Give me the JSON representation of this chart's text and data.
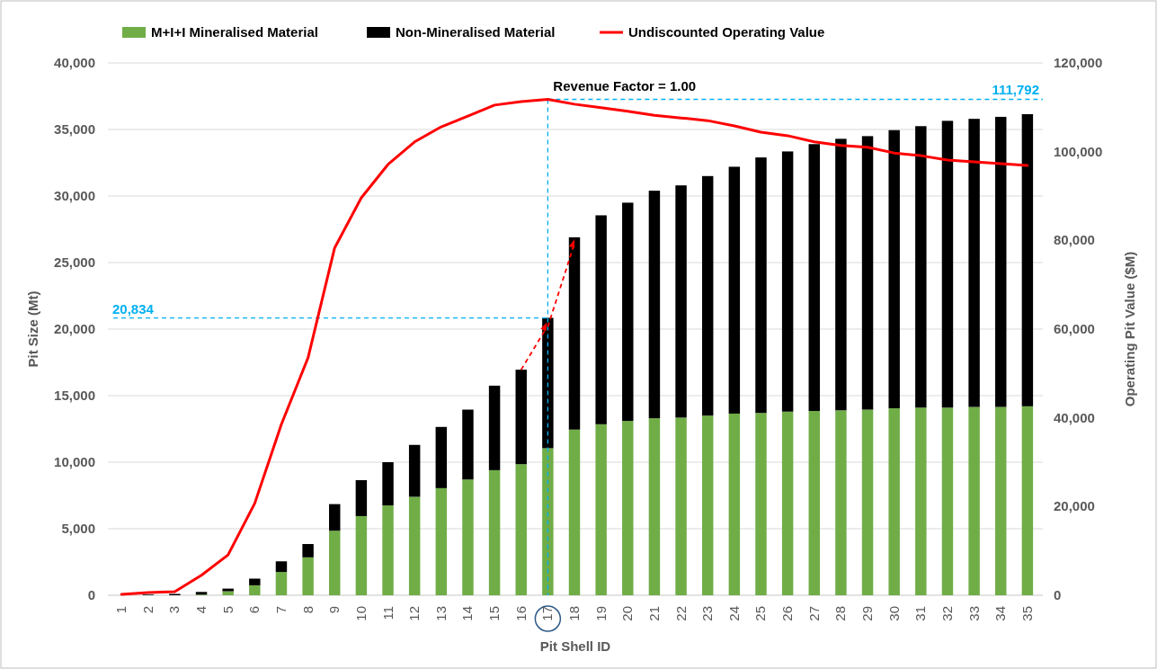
{
  "chart_data": {
    "type": "bar",
    "stacked": true,
    "categories": [
      "1",
      "2",
      "3",
      "4",
      "5",
      "6",
      "7",
      "8",
      "9",
      "10",
      "11",
      "12",
      "13",
      "14",
      "15",
      "16",
      "17",
      "18",
      "19",
      "20",
      "21",
      "22",
      "23",
      "24",
      "25",
      "26",
      "27",
      "28",
      "29",
      "30",
      "31",
      "32",
      "33",
      "34",
      "35"
    ],
    "series": [
      {
        "name": "M+I+I Mineralised Material",
        "color": "#70ad47",
        "values": [
          0,
          0,
          0,
          50,
          300,
          750,
          1750,
          2850,
          4850,
          5950,
          6750,
          7400,
          8050,
          8700,
          9400,
          9850,
          11050,
          12450,
          12850,
          13100,
          13300,
          13350,
          13500,
          13650,
          13700,
          13800,
          13850,
          13900,
          13950,
          14050,
          14100,
          14100,
          14150,
          14150,
          14200
        ]
      },
      {
        "name": "Non-Mineralised Material",
        "color": "#000000",
        "values": [
          null,
          50,
          100,
          200,
          200,
          500,
          800,
          1000,
          2000,
          2700,
          3250,
          3900,
          4600,
          5250,
          6350,
          7100,
          9800,
          14450,
          15700,
          16400,
          17100,
          17450,
          18000,
          18550,
          19200,
          19550,
          20050,
          20400,
          20550,
          20900,
          21150,
          21550,
          21650,
          21800,
          21950
        ]
      },
      {
        "name": "Undiscounted Operating Value",
        "type": "line",
        "axis": "y2",
        "color": "#ff0000",
        "values": [
          200,
          600,
          800,
          4500,
          9100,
          20700,
          38500,
          53500,
          78300,
          89600,
          97100,
          102200,
          105600,
          108000,
          110500,
          111300,
          111800,
          110700,
          109900,
          109100,
          108200,
          107600,
          107000,
          105800,
          104400,
          103600,
          102200,
          101400,
          101000,
          99700,
          99100,
          98100,
          97700,
          97300,
          96900
        ]
      }
    ],
    "xlabel": "Pit Shell ID",
    "ylabel": "Pit Size (Mt)",
    "y2label": "Operating Pit Value ($M)",
    "ylim": [
      0,
      40000
    ],
    "yticks": [
      {
        "value": 0,
        "label": "0"
      },
      {
        "value": 5000,
        "label": "5,000"
      },
      {
        "value": 10000,
        "label": "10,000"
      },
      {
        "value": 15000,
        "label": "15,000"
      },
      {
        "value": 20000,
        "label": "20,000"
      },
      {
        "value": 25000,
        "label": "25,000"
      },
      {
        "value": 30000,
        "label": "30,000"
      },
      {
        "value": 35000,
        "label": "35,000"
      },
      {
        "value": 40000,
        "label": "40,000"
      }
    ],
    "y2lim": [
      0,
      120000
    ],
    "y2ticks": [
      {
        "value": 0,
        "label": "0"
      },
      {
        "value": 20000,
        "label": "20,000"
      },
      {
        "value": 40000,
        "label": "40,000"
      },
      {
        "value": 60000,
        "label": "60,000"
      },
      {
        "value": 80000,
        "label": "80,000"
      },
      {
        "value": 100000,
        "label": "100,000"
      },
      {
        "value": 120000,
        "label": "120,000"
      }
    ],
    "grid": "y",
    "legend": "top",
    "ref_lines": [
      {
        "axis": "x",
        "value": "17",
        "label": "Revenue Factor = 1.00",
        "color": "#00b0f0",
        "line_style": "dashed"
      },
      {
        "axis": "y",
        "value": 20834,
        "label": "20,834",
        "color": "#00b0f0",
        "line_style": "dashed"
      },
      {
        "axis": "y2",
        "value": 111792,
        "label": "111,792",
        "color": "#00b0f0",
        "line_style": "dashed"
      }
    ]
  }
}
